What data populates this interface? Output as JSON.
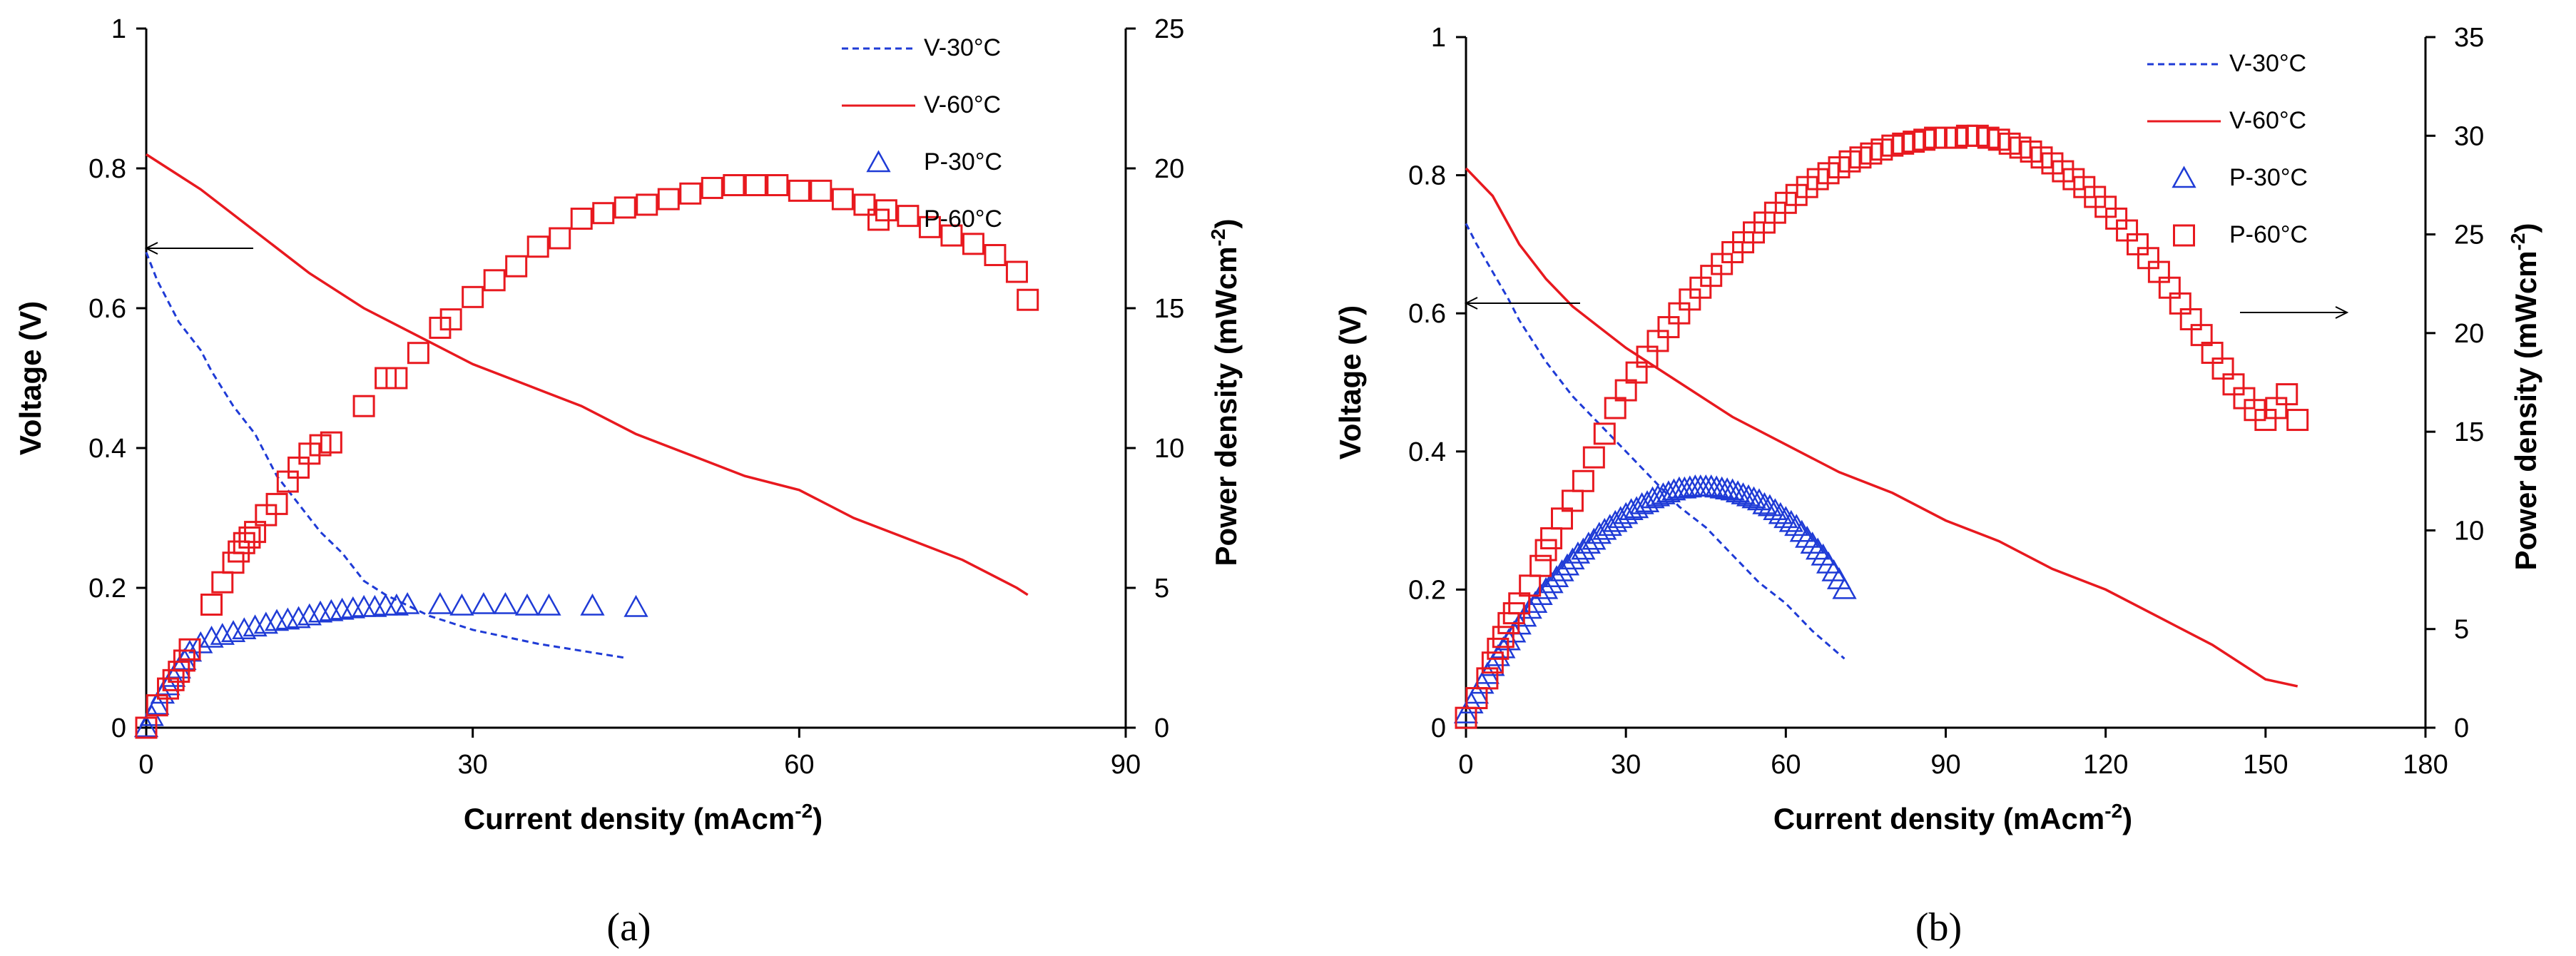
{
  "chart_data": [
    {
      "type": "line",
      "panel_label": "(a)",
      "xlabel": "Current density (mAcm",
      "xlabel_sup": "-2",
      "xlabel_end": ")",
      "ylabel": "Voltage (V)",
      "y2label": "Power density (mWcm",
      "y2label_sup": "-2",
      "y2label_end": ")",
      "xlim": [
        0,
        90
      ],
      "ylim": [
        0,
        1
      ],
      "y2lim": [
        0,
        25
      ],
      "xticks": [
        0,
        30,
        60,
        90
      ],
      "yticks": [
        "0",
        "0.2",
        "0.4",
        "0.6",
        "0.8",
        "1"
      ],
      "y2ticks": [
        0,
        5,
        10,
        15,
        20,
        25
      ],
      "legend": [
        "V-30°C",
        "V-60°C",
        "P-30°C",
        "P-60°C"
      ],
      "series": [
        {
          "name": "V-30°C",
          "axis": "left",
          "style": "dashed",
          "color": "#1f3bd6",
          "x": [
            0,
            0.5,
            1,
            2,
            3,
            4,
            5,
            6,
            8,
            10,
            12,
            14,
            16,
            18,
            20,
            22,
            24,
            26,
            28,
            30,
            33,
            36,
            40,
            44
          ],
          "y": [
            0.68,
            0.66,
            0.64,
            0.61,
            0.58,
            0.56,
            0.54,
            0.51,
            0.46,
            0.42,
            0.36,
            0.32,
            0.28,
            0.25,
            0.21,
            0.19,
            0.175,
            0.16,
            0.15,
            0.14,
            0.13,
            0.12,
            0.11,
            0.1
          ]
        },
        {
          "name": "V-60°C",
          "axis": "left",
          "style": "solid",
          "color": "#e8191f",
          "x": [
            0,
            5,
            10,
            15,
            20,
            25,
            30,
            35,
            40,
            45,
            50,
            55,
            60,
            65,
            70,
            75,
            80,
            81
          ],
          "y": [
            0.82,
            0.77,
            0.71,
            0.65,
            0.6,
            0.56,
            0.52,
            0.49,
            0.46,
            0.42,
            0.39,
            0.36,
            0.34,
            0.3,
            0.27,
            0.24,
            0.2,
            0.19
          ]
        },
        {
          "name": "P-30°C",
          "axis": "right",
          "marker": "triangle",
          "color": "#1f3bd6",
          "x": [
            0,
            0.5,
            1,
            1.5,
            2,
            2.5,
            3,
            3.5,
            4,
            5,
            6,
            7,
            8,
            9,
            10,
            11,
            12,
            13,
            14,
            15,
            16,
            17,
            18,
            19,
            20,
            21,
            22,
            23,
            24,
            27,
            29,
            31,
            33,
            35,
            37,
            41,
            45
          ],
          "y": [
            0,
            0.4,
            0.8,
            1.2,
            1.5,
            1.8,
            2.1,
            2.4,
            2.7,
            3.0,
            3.2,
            3.3,
            3.4,
            3.5,
            3.6,
            3.7,
            3.8,
            3.85,
            3.9,
            4.0,
            4.1,
            4.15,
            4.2,
            4.25,
            4.3,
            4.3,
            4.35,
            4.35,
            4.4,
            4.4,
            4.35,
            4.4,
            4.4,
            4.35,
            4.35,
            4.35,
            4.3
          ]
        },
        {
          "name": "P-60°C",
          "axis": "right",
          "marker": "square",
          "color": "#e8191f",
          "x": [
            0,
            1,
            2,
            2.5,
            3,
            3.5,
            4,
            6,
            7,
            8,
            8.5,
            9,
            9.5,
            10,
            11,
            12,
            13,
            14,
            15,
            16,
            17,
            20,
            22,
            23,
            25,
            27,
            28,
            30,
            32,
            34,
            36,
            38,
            40,
            42,
            44,
            46,
            48,
            50,
            52,
            54,
            56,
            58,
            60,
            62,
            64,
            66,
            68,
            70,
            72,
            74,
            76,
            78,
            80,
            81
          ],
          "y": [
            0,
            0.8,
            1.4,
            1.7,
            2.0,
            2.4,
            2.8,
            4.4,
            5.2,
            5.9,
            6.3,
            6.6,
            6.8,
            7.0,
            7.6,
            8.0,
            8.8,
            9.3,
            9.8,
            10.1,
            10.2,
            11.5,
            12.5,
            12.5,
            13.4,
            14.3,
            14.6,
            15.4,
            16.0,
            16.5,
            17.2,
            17.5,
            18.2,
            18.4,
            18.6,
            18.7,
            18.9,
            19.1,
            19.3,
            19.4,
            19.4,
            19.4,
            19.2,
            19.2,
            18.9,
            18.7,
            18.5,
            18.3,
            17.9,
            17.6,
            17.3,
            16.9,
            16.3,
            15.3
          ]
        }
      ]
    },
    {
      "type": "line",
      "panel_label": "(b)",
      "xlabel": "Current density (mAcm",
      "xlabel_sup": "-2",
      "xlabel_end": ")",
      "ylabel": "Voltage (V)",
      "y2label": "Power density (mWcm",
      "y2label_sup": "-2",
      "y2label_end": ")",
      "xlim": [
        0,
        180
      ],
      "ylim": [
        0,
        1
      ],
      "y2lim": [
        0,
        35
      ],
      "xticks": [
        0,
        30,
        60,
        90,
        120,
        150,
        180
      ],
      "yticks": [
        "0",
        "0.2",
        "0.4",
        "0.6",
        "0.8",
        "1"
      ],
      "y2ticks": [
        0,
        5,
        10,
        15,
        20,
        25,
        30,
        35
      ],
      "legend": [
        "V-30°C",
        "V-60°C",
        "P-30°C",
        "P-60°C"
      ],
      "series": [
        {
          "name": "V-30°C",
          "axis": "left",
          "style": "dashed",
          "color": "#1f3bd6",
          "x": [
            0,
            2,
            5,
            8,
            10,
            15,
            20,
            25,
            30,
            35,
            40,
            45,
            50,
            55,
            60,
            65,
            71
          ],
          "y": [
            0.73,
            0.7,
            0.66,
            0.62,
            0.59,
            0.53,
            0.48,
            0.44,
            0.4,
            0.36,
            0.32,
            0.29,
            0.25,
            0.21,
            0.18,
            0.14,
            0.1
          ]
        },
        {
          "name": "V-60°C",
          "axis": "left",
          "style": "solid",
          "color": "#e8191f",
          "x": [
            0,
            5,
            10,
            15,
            20,
            25,
            30,
            40,
            50,
            60,
            70,
            80,
            90,
            100,
            110,
            120,
            130,
            140,
            150,
            156
          ],
          "y": [
            0.81,
            0.77,
            0.7,
            0.65,
            0.61,
            0.58,
            0.55,
            0.5,
            0.45,
            0.41,
            0.37,
            0.34,
            0.3,
            0.27,
            0.23,
            0.2,
            0.16,
            0.12,
            0.07,
            0.06
          ]
        },
        {
          "name": "P-30°C",
          "axis": "right",
          "marker": "triangle",
          "color": "#1f3bd6",
          "x": [
            0,
            1,
            2,
            3,
            4,
            5,
            6,
            7,
            8,
            9,
            10,
            11,
            12,
            13,
            14,
            15,
            16,
            17,
            18,
            19,
            20,
            21,
            22,
            23,
            24,
            25,
            26,
            27,
            28,
            29,
            30,
            31,
            32,
            33,
            34,
            35,
            36,
            37,
            38,
            39,
            40,
            41,
            42,
            43,
            44,
            45,
            46,
            47,
            48,
            49,
            50,
            51,
            52,
            53,
            54,
            55,
            56,
            57,
            58,
            59,
            60,
            61,
            62,
            63,
            64,
            65,
            66,
            67,
            68,
            69,
            70,
            71
          ],
          "y": [
            0.7,
            1.2,
            1.7,
            2.2,
            2.7,
            3.1,
            3.6,
            4.0,
            4.4,
            4.8,
            5.2,
            5.6,
            6.0,
            6.3,
            6.7,
            7.0,
            7.3,
            7.6,
            7.9,
            8.2,
            8.5,
            8.8,
            9.0,
            9.3,
            9.5,
            9.8,
            10.0,
            10.2,
            10.4,
            10.6,
            10.8,
            11.0,
            11.1,
            11.3,
            11.4,
            11.6,
            11.7,
            11.8,
            11.9,
            12.0,
            12.1,
            12.1,
            12.15,
            12.2,
            12.2,
            12.2,
            12.2,
            12.15,
            12.1,
            12.05,
            12.0,
            11.9,
            11.8,
            11.7,
            11.6,
            11.5,
            11.3,
            11.2,
            11.0,
            10.8,
            10.6,
            10.4,
            10.2,
            9.9,
            9.6,
            9.3,
            9.0,
            8.7,
            8.3,
            7.9,
            7.5,
            7.0
          ]
        },
        {
          "name": "P-60°C",
          "axis": "right",
          "marker": "square",
          "color": "#e8191f",
          "x": [
            0,
            2,
            4,
            5,
            6,
            7,
            8,
            9,
            10,
            12,
            14,
            15,
            16,
            18,
            20,
            22,
            24,
            26,
            28,
            30,
            32,
            34,
            36,
            38,
            40,
            42,
            44,
            46,
            48,
            50,
            52,
            54,
            56,
            58,
            60,
            62,
            64,
            66,
            68,
            70,
            72,
            74,
            76,
            78,
            80,
            82,
            84,
            86,
            88,
            90,
            92,
            94,
            96,
            98,
            100,
            102,
            104,
            106,
            108,
            110,
            112,
            114,
            116,
            118,
            120,
            122,
            124,
            126,
            128,
            130,
            132,
            134,
            136,
            138,
            140,
            142,
            144,
            146,
            148,
            150,
            152,
            154,
            156
          ],
          "y": [
            0.5,
            1.5,
            2.5,
            3.3,
            4.0,
            4.6,
            5.3,
            5.8,
            6.3,
            7.2,
            8.2,
            9.0,
            9.6,
            10.6,
            11.5,
            12.5,
            13.7,
            14.9,
            16.2,
            17.1,
            18.0,
            18.8,
            19.6,
            20.3,
            21.0,
            21.7,
            22.3,
            22.9,
            23.5,
            24.1,
            24.6,
            25.1,
            25.6,
            26.1,
            26.6,
            27.0,
            27.4,
            27.8,
            28.1,
            28.4,
            28.7,
            28.9,
            29.1,
            29.3,
            29.5,
            29.6,
            29.7,
            29.8,
            29.9,
            29.9,
            29.9,
            30.0,
            30.0,
            29.9,
            29.8,
            29.6,
            29.4,
            29.2,
            28.9,
            28.6,
            28.2,
            27.8,
            27.4,
            26.9,
            26.4,
            25.8,
            25.2,
            24.5,
            23.8,
            23.1,
            22.3,
            21.5,
            20.7,
            19.9,
            19.0,
            18.2,
            17.4,
            16.7,
            16.1,
            15.6,
            16.2,
            16.9,
            15.6
          ]
        }
      ]
    }
  ],
  "annotations": {
    "arrows": "left/right axis pointers"
  }
}
